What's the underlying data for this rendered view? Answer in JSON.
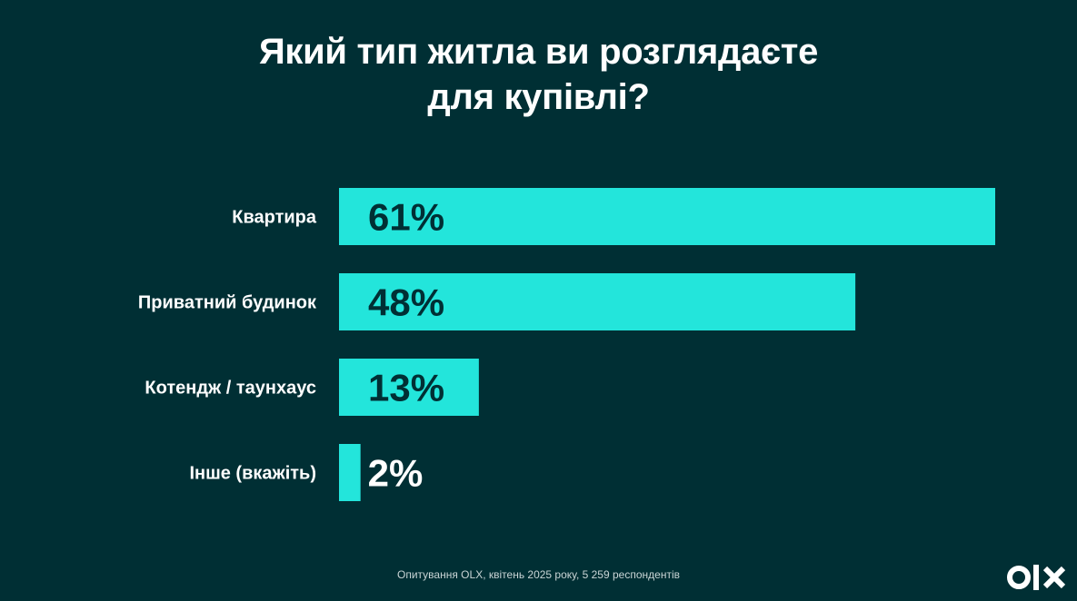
{
  "title_lines": [
    "Який тип житла ви розглядаєте",
    "для купівлі?"
  ],
  "footnote": "Опитування OLX, квітень 2025 року, 5 259 респондентів",
  "logo": {
    "text": "OLX"
  },
  "colors": {
    "background": "#002f34",
    "bar": "#23e5db",
    "value_on_bar": "#002f34",
    "value_off_bar": "#ffffff"
  },
  "chart_data": {
    "type": "bar",
    "orientation": "horizontal",
    "title": "Який тип житла ви розглядаєте для купівлі?",
    "categories": [
      "Квартира",
      "Приватний будинок",
      "Котендж / таунхаус",
      "Інше (вкажіть)"
    ],
    "values": [
      61,
      48,
      13,
      2
    ],
    "value_labels": [
      "61%",
      "48%",
      "13%",
      "2%"
    ],
    "unit": "%",
    "xlim": [
      0,
      61
    ],
    "grid": false,
    "legend": "none"
  }
}
